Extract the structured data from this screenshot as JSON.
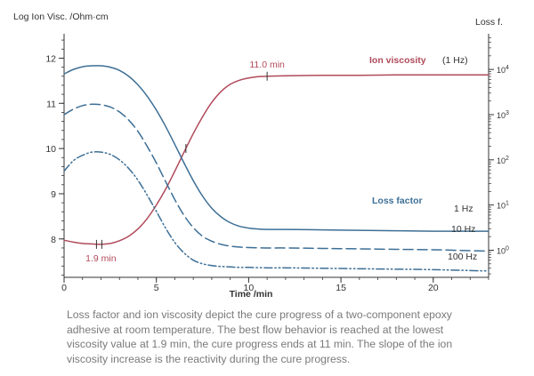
{
  "chart_data": {
    "type": "line",
    "xlabel": "Time /min",
    "ylabel_left": "Log Ion Visc. /Ohm·cm",
    "ylabel_right": "Loss f.",
    "xlim": [
      0,
      23
    ],
    "ylim_left": [
      7.15,
      12.5
    ],
    "ylim_right_log10": [
      -0.6,
      4.75
    ],
    "x_ticks": [
      0,
      5,
      10,
      15,
      20
    ],
    "x_minor_step": 1,
    "y_left_ticks": [
      8,
      9,
      10,
      11,
      12
    ],
    "y_left_minor_step": 0.2,
    "y_right_ticks": [
      {
        "value": 1,
        "base": "10",
        "exp": "0"
      },
      {
        "value": 10,
        "base": "10",
        "exp": "1"
      },
      {
        "value": 100,
        "base": "10",
        "exp": "2"
      },
      {
        "value": 1000,
        "base": "10",
        "exp": "3"
      },
      {
        "value": 10000,
        "base": "10",
        "exp": "4"
      }
    ],
    "y_right_scale": "log",
    "series": [
      {
        "name": "Ion viscosity",
        "axis": "left",
        "style": "solid",
        "color": "#b04a5a",
        "x": [
          0,
          0.5,
          1,
          1.5,
          1.9,
          2.5,
          3,
          3.5,
          4,
          4.5,
          5,
          5.5,
          6,
          6.5,
          7,
          7.5,
          8,
          8.5,
          9,
          9.5,
          10,
          10.5,
          11,
          12,
          14,
          16,
          18,
          20,
          22,
          23
        ],
        "values": [
          7.97,
          7.93,
          7.9,
          7.89,
          7.88,
          7.9,
          7.96,
          8.06,
          8.22,
          8.45,
          8.75,
          9.1,
          9.5,
          9.92,
          10.33,
          10.7,
          11.02,
          11.26,
          11.42,
          11.51,
          11.56,
          11.59,
          11.6,
          11.61,
          11.62,
          11.62,
          11.63,
          11.63,
          11.63,
          11.63
        ]
      },
      {
        "name": "1 Hz",
        "axis": "right",
        "style": "solid",
        "color": "#3d6f96",
        "x": [
          0,
          0.5,
          1,
          1.5,
          2,
          2.5,
          3,
          3.5,
          4,
          4.5,
          5,
          5.5,
          6,
          6.5,
          7,
          7.5,
          8,
          8.5,
          9,
          9.5,
          10,
          10.5,
          11,
          12,
          14,
          16,
          18,
          20,
          22,
          23
        ],
        "values": [
          3.9,
          4.0,
          4.06,
          4.08,
          4.08,
          4.05,
          3.98,
          3.85,
          3.66,
          3.41,
          3.1,
          2.74,
          2.34,
          1.93,
          1.54,
          1.2,
          0.93,
          0.74,
          0.61,
          0.53,
          0.49,
          0.47,
          0.46,
          0.46,
          0.45,
          0.44,
          0.43,
          0.42,
          0.42,
          0.42
        ]
      },
      {
        "name": "10 Hz",
        "axis": "right",
        "style": "dashed",
        "color": "#3d6f96",
        "x": [
          0,
          0.5,
          1,
          1.5,
          2,
          2.5,
          3,
          3.5,
          4,
          4.5,
          5,
          5.5,
          6,
          6.5,
          7,
          7.5,
          8,
          8.5,
          9,
          9.5,
          10,
          11,
          12,
          14,
          16,
          18,
          20,
          22,
          23
        ],
        "values": [
          3.0,
          3.12,
          3.2,
          3.23,
          3.22,
          3.17,
          3.06,
          2.88,
          2.63,
          2.3,
          1.93,
          1.52,
          1.12,
          0.77,
          0.5,
          0.31,
          0.2,
          0.13,
          0.09,
          0.07,
          0.06,
          0.05,
          0.05,
          0.04,
          0.03,
          0.02,
          0.01,
          -0.01,
          -0.02
        ]
      },
      {
        "name": "100 Hz",
        "axis": "right",
        "style": "dashdotdot",
        "color": "#3d6f96",
        "x": [
          0,
          0.5,
          1,
          1.5,
          2,
          2.5,
          3,
          3.5,
          4,
          4.5,
          5,
          5.5,
          6,
          6.5,
          7,
          7.5,
          8,
          8.5,
          9,
          9.5,
          10,
          11,
          12,
          14,
          16,
          18,
          20,
          22,
          23
        ],
        "values": [
          1.75,
          1.98,
          2.1,
          2.17,
          2.17,
          2.12,
          2.0,
          1.81,
          1.55,
          1.22,
          0.86,
          0.49,
          0.17,
          -0.06,
          -0.22,
          -0.3,
          -0.34,
          -0.36,
          -0.37,
          -0.38,
          -0.38,
          -0.39,
          -0.39,
          -0.4,
          -0.41,
          -0.42,
          -0.43,
          -0.45,
          -0.46
        ]
      }
    ],
    "annotations": [
      {
        "text": "11.0 min",
        "x": 11.0,
        "y": 11.6,
        "axis": "left",
        "color": "#b04a5a"
      },
      {
        "text": "1.9 min",
        "x": 1.9,
        "y": 7.88,
        "axis": "left",
        "color": "#b04a5a"
      },
      {
        "text": "Ion viscosity",
        "color": "#b04a5a",
        "bold": true
      },
      {
        "text": "(1 Hz)",
        "color": "#333333"
      },
      {
        "text": "Loss factor",
        "color": "#3d6f96",
        "bold": true
      }
    ],
    "curve_labels": {
      "s1": "1 Hz",
      "s2": "10 Hz",
      "s3": "100 Hz"
    },
    "grid": false,
    "colors": {
      "ion": "#b04a5a",
      "loss": "#3d6f96",
      "axis": "#333333"
    }
  },
  "caption": "Loss factor and ion viscosity depict the cure progress of a two-component epoxy adhesive at room temperature. The best flow behavior is reached at the lowest viscosity value at 1.9 min, the cure progress ends at 11 min. The slope of the ion viscosity increase is the reactivity during the cure progress."
}
